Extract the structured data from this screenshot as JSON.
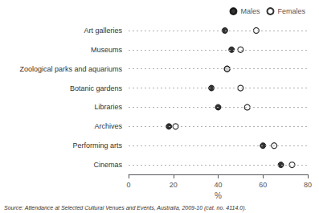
{
  "chart_data": {
    "type": "dot",
    "orientation": "horizontal",
    "categories": [
      "Art galleries",
      "Museums",
      "Zoological parks and aquariums",
      "Botanic gardens",
      "Libraries",
      "Archives",
      "Performing arts",
      "Cinemas"
    ],
    "series": [
      {
        "name": "Males",
        "color": "#000000",
        "marker": "circle",
        "values": [
          43,
          46,
          44,
          37,
          40,
          18,
          60,
          68
        ]
      },
      {
        "name": "Females",
        "color": "#000000",
        "marker": "open_circle",
        "values": [
          57,
          50,
          44,
          50,
          53,
          21,
          65,
          73
        ]
      }
    ],
    "xlabel": "%",
    "xlim": [
      0,
      80
    ],
    "xticks": [
      0,
      20,
      40,
      60,
      80
    ],
    "grid": "y",
    "legend": "upper right",
    "annotations": [
      "Source: Attendance at Selected Cultural Venues and Events, Australia, 2009-10 (cat. no. 4114.0)."
    ]
  }
}
